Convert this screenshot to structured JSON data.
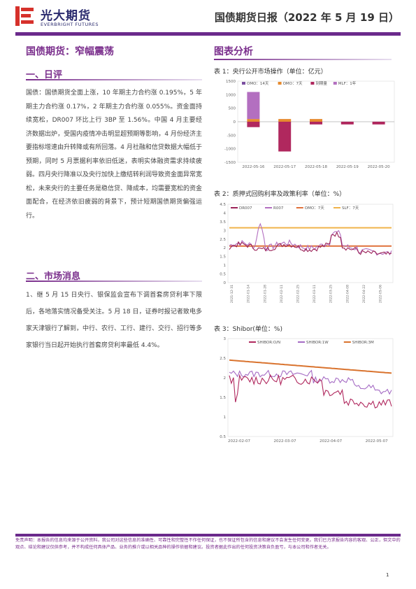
{
  "header": {
    "brand_cn": "光大期货",
    "brand_en": "EVERBRIGHT FUTURES",
    "report_title": "国债期货日报（2022 年 5 月 19 日）"
  },
  "main_title": "国债期货：窄幅震荡",
  "section1": {
    "heading": "一、日评",
    "paragraph": "国债：国债期货全面上涨，10 年期主力合约涨 0.195%，5 年期主力合约涨 0.17%，2 年期主力合约涨 0.055%。资金面持续宽松，DR007 环比上行 3BP 至 1.56%。中国 4 月主要经济数据出炉，受国内疫情冲击明显超预期等影响，4 月份经济主要指标增速由升转降或有所回落。4 月社融和信贷数据大幅低于预期，同时 5 月票据利率依旧低迷，表明实体融资需求持续疲弱。四月央行降准以及央行加快上缴结转利润导致资金面异常宽松，未来央行的主要任务是稳信贷、降成本，均需要宽松的资金面配合，在经济依旧疲弱的背景下，预计短期国债期货偏强运行。"
  },
  "section2": {
    "heading": "二、市场消息",
    "paragraph": "1、继 5 月 15 日央行、银保监会宣布下调首套房贷利率下限后，各地落实情况备受关注。5 月 18 日，证券时报记者致电多家天津银行了解到，中行、农行、工行、建行、交行、招行等多家银行当日起开始执行首套房贷利率最低 4.4%。"
  },
  "charts_heading": "图表分析",
  "charts": [
    {
      "caption": "表 1：央行公开市场操作（单位：亿元）",
      "chart_data": {
        "type": "bar",
        "categories": [
          "2022-05-16",
          "2022-05-17",
          "2022-05-18",
          "2022-05-19",
          "2022-05-20"
        ],
        "series": [
          {
            "name": "OMO：14天",
            "color": "#7b4fa0",
            "values": [
              0,
              0,
              0,
              0,
              0
            ]
          },
          {
            "name": "OMO：7天",
            "color": "#e68a2e",
            "values": [
              100,
              100,
              100,
              0,
              0
            ]
          },
          {
            "name": "到期量",
            "color": "#b0285e",
            "values": [
              -200,
              -1100,
              -100,
              -100,
              -100
            ]
          },
          {
            "name": "MLF：1年",
            "color": "#b36fc0",
            "values": [
              1000,
              0,
              0,
              0,
              0
            ]
          }
        ],
        "ylim": [
          -1500,
          1500
        ],
        "yticks": [
          "1500",
          "1000",
          "500",
          "0",
          "-500",
          "-1000",
          "-1500"
        ]
      }
    },
    {
      "caption": "表 2：质押式回购利率及政策利率（单位：%）",
      "chart_data": {
        "type": "line",
        "series": [
          {
            "name": "DR007",
            "color": "#9b2257"
          },
          {
            "name": "R007",
            "color": "#b36fc0"
          },
          {
            "name": "OMO：7天",
            "color": "#e0713a"
          },
          {
            "name": "SLF：7天",
            "color": "#f0b34a"
          }
        ],
        "ylim": [
          0,
          4.5
        ],
        "yticks": [
          "4.5",
          "4",
          "3.5",
          "3",
          "2.5",
          "2",
          "1.5",
          "1",
          "0.5",
          "0"
        ],
        "xticks": [
          "2021-12-31",
          "2022-01-14",
          "2022-01-28",
          "2022-02-11",
          "2022-02-25",
          "2022-03-11",
          "2022-03-25",
          "2022-04-08",
          "2022-04-22",
          "2022-05-06"
        ]
      }
    },
    {
      "caption": "表 3：Shibor(单位：%)",
      "chart_data": {
        "type": "line",
        "series": [
          {
            "name": "SHIBOR:O/N",
            "color": "#b0285e"
          },
          {
            "name": "SHIBOR:1W",
            "color": "#a56bc4"
          },
          {
            "name": "SHIBOR:3M",
            "color": "#d9732e"
          }
        ],
        "ylim": [
          0.5,
          3
        ],
        "yticks": [
          "3",
          "2.5",
          "2",
          "1.5",
          "1",
          "0.5"
        ],
        "xticks": [
          "2022-02-07",
          "2022-03-07",
          "2022-04-07",
          "2022-05-07"
        ]
      }
    }
  ],
  "disclaimer": "免责声明：本报告的信息均来源于公开资料，我公司对这些信息的准确性、可靠性和完整性不作任何保证，也不保证所包含的信息和建议不会发生任何变更。我们已力求报告内容的客观、公正，但文中的观点、结论和建议仅供参考，并不构成任何具体产品、业务的推介或以相关品种的操作依据和建议。投资者据此作出的任何投资决策自负盈亏，与本公司和作者无关。",
  "page_number": "1"
}
